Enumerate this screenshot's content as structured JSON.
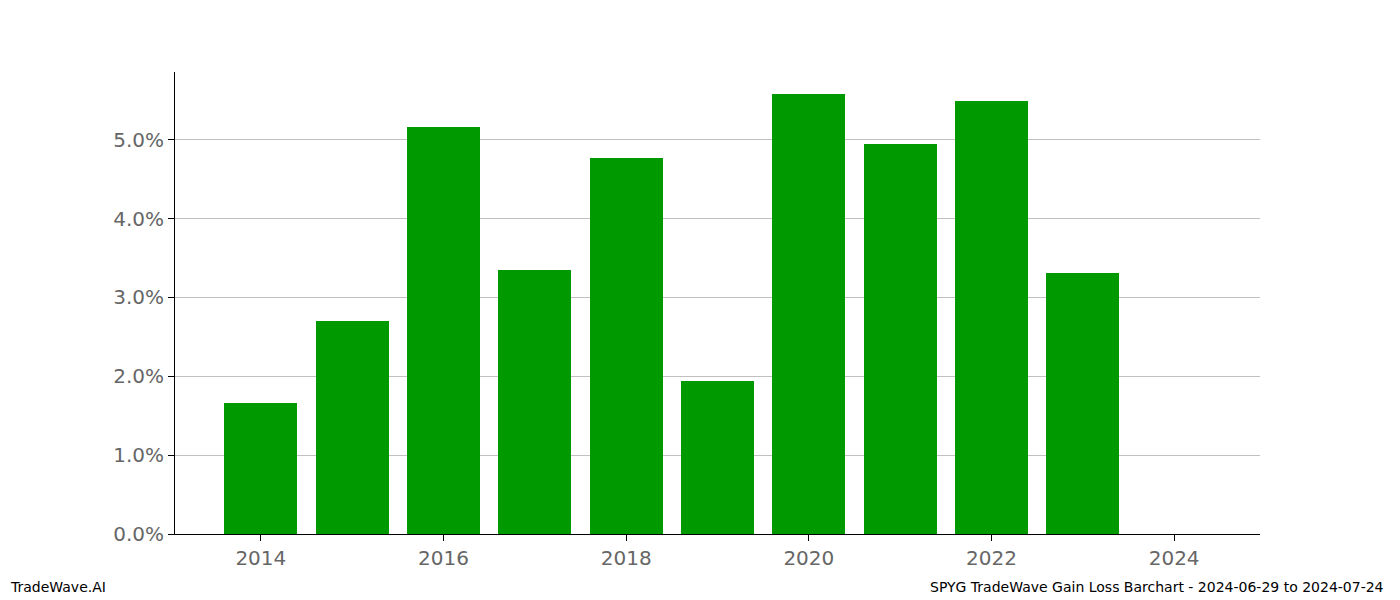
{
  "chart_data": {
    "type": "bar",
    "x": [
      2014,
      2015,
      2016,
      2017,
      2018,
      2019,
      2020,
      2021,
      2022,
      2023,
      2024
    ],
    "values": [
      1.66,
      2.7,
      5.16,
      3.35,
      4.77,
      1.94,
      5.58,
      4.95,
      5.49,
      3.31,
      0
    ],
    "color": "#009900",
    "xlim": [
      2013.06,
      2024.94
    ],
    "xticks": [
      2014,
      2016,
      2018,
      2020,
      2022,
      2024
    ],
    "ylim": [
      0,
      5.86
    ],
    "yticks": [
      {
        "value": 0,
        "label": "0.0%"
      },
      {
        "value": 1,
        "label": "1.0%"
      },
      {
        "value": 2,
        "label": "2.0%"
      },
      {
        "value": 3,
        "label": "3.0%"
      },
      {
        "value": 4,
        "label": "4.0%"
      },
      {
        "value": 5,
        "label": "5.0%"
      }
    ],
    "grid": true,
    "annotations": [
      "TradeWave.AI",
      "SPYG TradeWave Gain Loss Barchart - 2024-06-29 to 2024-07-24"
    ]
  }
}
